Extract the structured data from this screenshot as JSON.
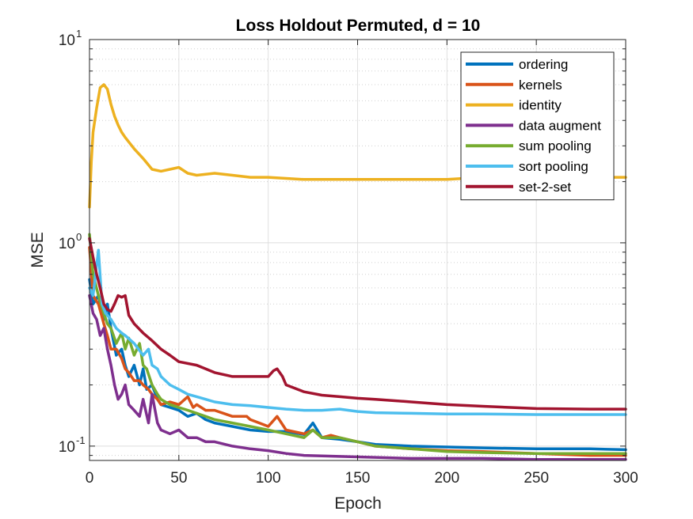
{
  "chart_data": {
    "type": "line",
    "title": "Loss Holdout Permuted, d = 10",
    "xlabel": "Epoch",
    "ylabel": "MSE",
    "xlim": [
      0,
      300
    ],
    "ylim": [
      0.085,
      10
    ],
    "yscale": "log",
    "grid": true,
    "legend_position": "top-right",
    "xticks": [
      "0",
      "50",
      "100",
      "150",
      "200",
      "250",
      "300"
    ],
    "yticks": [
      {
        "base": "10",
        "exp": "1",
        "value": 10
      },
      {
        "base": "10",
        "exp": "0",
        "value": 1
      },
      {
        "base": "10",
        "exp": "-1",
        "value": 0.1
      }
    ],
    "series": [
      {
        "name": "ordering",
        "color": "#0072BD",
        "x": [
          0,
          2,
          5,
          8,
          10,
          12,
          15,
          18,
          20,
          22,
          25,
          28,
          30,
          32,
          35,
          38,
          40,
          45,
          50,
          55,
          60,
          65,
          70,
          80,
          90,
          100,
          110,
          120,
          125,
          130,
          140,
          150,
          160,
          180,
          200,
          220,
          250,
          280,
          300
        ],
        "y": [
          0.66,
          0.5,
          0.55,
          0.42,
          0.5,
          0.38,
          0.28,
          0.3,
          0.25,
          0.22,
          0.25,
          0.2,
          0.24,
          0.19,
          0.2,
          0.17,
          0.16,
          0.155,
          0.15,
          0.14,
          0.145,
          0.135,
          0.13,
          0.125,
          0.12,
          0.118,
          0.118,
          0.114,
          0.13,
          0.11,
          0.108,
          0.105,
          0.102,
          0.1,
          0.099,
          0.098,
          0.097,
          0.097,
          0.096
        ]
      },
      {
        "name": "kernels",
        "color": "#D95319",
        "x": [
          0,
          2,
          5,
          8,
          10,
          12,
          15,
          18,
          20,
          22,
          25,
          28,
          30,
          33,
          35,
          38,
          40,
          45,
          50,
          55,
          58,
          60,
          65,
          70,
          80,
          88,
          90,
          95,
          100,
          105,
          110,
          120,
          125,
          130,
          135,
          140,
          150,
          160,
          180,
          200,
          220,
          250,
          280,
          300
        ],
        "y": [
          0.95,
          0.55,
          0.5,
          0.4,
          0.35,
          0.3,
          0.3,
          0.27,
          0.24,
          0.23,
          0.21,
          0.21,
          0.2,
          0.19,
          0.18,
          0.17,
          0.16,
          0.165,
          0.16,
          0.175,
          0.155,
          0.16,
          0.15,
          0.15,
          0.14,
          0.14,
          0.135,
          0.13,
          0.125,
          0.14,
          0.12,
          0.115,
          0.12,
          0.11,
          0.113,
          0.11,
          0.105,
          0.1,
          0.097,
          0.095,
          0.094,
          0.092,
          0.09,
          0.09
        ]
      },
      {
        "name": "identity",
        "color": "#EDB120",
        "x": [
          0,
          1,
          2,
          4,
          6,
          8,
          10,
          12,
          14,
          16,
          18,
          20,
          25,
          30,
          35,
          40,
          45,
          50,
          55,
          60,
          70,
          80,
          90,
          100,
          120,
          140,
          150,
          160,
          180,
          200,
          220,
          250,
          280,
          300
        ],
        "y": [
          1.5,
          2.5,
          3.5,
          4.6,
          5.8,
          6.0,
          5.7,
          4.8,
          4.2,
          3.8,
          3.5,
          3.3,
          2.9,
          2.6,
          2.3,
          2.25,
          2.3,
          2.35,
          2.2,
          2.15,
          2.2,
          2.15,
          2.1,
          2.1,
          2.05,
          2.05,
          2.05,
          2.05,
          2.05,
          2.05,
          2.1,
          2.1,
          2.1,
          2.1
        ]
      },
      {
        "name": "data augment",
        "color": "#7E2F8E",
        "x": [
          0,
          2,
          4,
          6,
          8,
          10,
          12,
          14,
          16,
          18,
          20,
          22,
          25,
          28,
          30,
          33,
          35,
          38,
          40,
          45,
          50,
          55,
          60,
          65,
          70,
          80,
          90,
          100,
          110,
          120,
          140,
          160,
          180,
          200,
          220,
          250,
          280,
          300
        ],
        "y": [
          0.55,
          0.45,
          0.42,
          0.35,
          0.38,
          0.3,
          0.25,
          0.2,
          0.17,
          0.18,
          0.2,
          0.16,
          0.15,
          0.14,
          0.17,
          0.13,
          0.18,
          0.13,
          0.12,
          0.115,
          0.12,
          0.11,
          0.11,
          0.105,
          0.105,
          0.1,
          0.097,
          0.095,
          0.092,
          0.09,
          0.089,
          0.088,
          0.087,
          0.087,
          0.087,
          0.086,
          0.086,
          0.086
        ]
      },
      {
        "name": "sum pooling",
        "color": "#77AC30",
        "x": [
          0,
          2,
          5,
          8,
          10,
          12,
          15,
          18,
          20,
          22,
          25,
          28,
          30,
          32,
          35,
          38,
          40,
          45,
          50,
          55,
          60,
          65,
          70,
          80,
          90,
          100,
          110,
          120,
          125,
          130,
          140,
          150,
          160,
          180,
          200,
          220,
          250,
          280,
          300
        ],
        "y": [
          1.1,
          0.7,
          0.55,
          0.45,
          0.4,
          0.38,
          0.32,
          0.36,
          0.3,
          0.34,
          0.28,
          0.32,
          0.25,
          0.24,
          0.2,
          0.18,
          0.17,
          0.16,
          0.155,
          0.15,
          0.145,
          0.14,
          0.135,
          0.13,
          0.125,
          0.12,
          0.115,
          0.11,
          0.12,
          0.11,
          0.11,
          0.105,
          0.1,
          0.097,
          0.094,
          0.093,
          0.092,
          0.092,
          0.092
        ]
      },
      {
        "name": "sort pooling",
        "color": "#4DBEEE",
        "x": [
          0,
          2,
          5,
          7,
          9,
          12,
          15,
          18,
          20,
          25,
          30,
          33,
          35,
          38,
          40,
          45,
          50,
          55,
          60,
          65,
          70,
          80,
          90,
          100,
          110,
          120,
          130,
          140,
          150,
          160,
          180,
          200,
          220,
          250,
          280,
          300
        ],
        "y": [
          0.6,
          0.55,
          0.92,
          0.5,
          0.45,
          0.42,
          0.38,
          0.36,
          0.35,
          0.32,
          0.28,
          0.3,
          0.25,
          0.24,
          0.22,
          0.2,
          0.19,
          0.18,
          0.175,
          0.17,
          0.165,
          0.16,
          0.158,
          0.155,
          0.152,
          0.15,
          0.15,
          0.152,
          0.148,
          0.146,
          0.145,
          0.144,
          0.144,
          0.143,
          0.143,
          0.143
        ]
      },
      {
        "name": "set-2-set",
        "color": "#A2142F",
        "x": [
          0,
          2,
          4,
          6,
          8,
          10,
          12,
          14,
          16,
          18,
          20,
          22,
          25,
          30,
          35,
          40,
          45,
          50,
          60,
          70,
          80,
          90,
          100,
          103,
          105,
          108,
          110,
          120,
          130,
          140,
          150,
          160,
          180,
          200,
          220,
          250,
          280,
          300
        ],
        "y": [
          1.05,
          0.85,
          0.7,
          0.6,
          0.5,
          0.47,
          0.46,
          0.5,
          0.55,
          0.54,
          0.55,
          0.44,
          0.4,
          0.36,
          0.33,
          0.3,
          0.28,
          0.26,
          0.25,
          0.23,
          0.22,
          0.22,
          0.22,
          0.235,
          0.24,
          0.22,
          0.2,
          0.185,
          0.178,
          0.175,
          0.172,
          0.17,
          0.165,
          0.16,
          0.157,
          0.153,
          0.152,
          0.152
        ]
      }
    ]
  }
}
